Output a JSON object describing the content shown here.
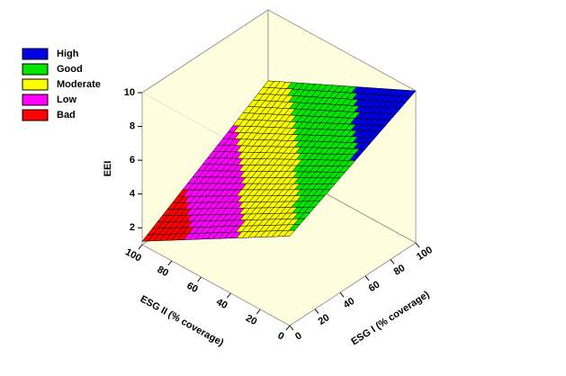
{
  "chart_data": {
    "type": "surface",
    "x_label": "ESG I (% coverage)",
    "y_label": "ESG II (% coverage)",
    "z_label": "EEI",
    "x": [
      0,
      20,
      40,
      60,
      80,
      100
    ],
    "y": [
      0,
      20,
      40,
      60,
      80,
      100
    ],
    "z": [
      [
        6.3,
        7.04,
        7.78,
        8.52,
        9.26,
        10.0
      ],
      [
        5.28,
        6.06,
        6.83,
        7.61,
        8.38,
        9.16
      ],
      [
        4.26,
        5.07,
        5.88,
        6.7,
        7.51,
        8.32
      ],
      [
        3.24,
        4.09,
        4.94,
        5.78,
        6.63,
        7.48
      ],
      [
        2.22,
        3.1,
        3.99,
        4.87,
        5.76,
        6.64
      ],
      [
        1.2,
        2.12,
        3.04,
        3.96,
        4.88,
        5.8
      ]
    ],
    "xlim": [
      0,
      100
    ],
    "ylim": [
      0,
      100
    ],
    "zlim": [
      1,
      10
    ],
    "xticks": [
      0,
      20,
      40,
      60,
      80,
      100
    ],
    "yticks": [
      0,
      20,
      40,
      60,
      80,
      100
    ],
    "zticks": [
      2,
      4,
      6,
      8,
      10
    ],
    "legend": [
      {
        "name": "High",
        "color": "#0000e6"
      },
      {
        "name": "Good",
        "color": "#00e600"
      },
      {
        "name": "Moderate",
        "color": "#ffff00"
      },
      {
        "name": "Low",
        "color": "#ff00ff"
      },
      {
        "name": "Bad",
        "color": "#ff0000"
      }
    ],
    "legend_position": "upper left"
  }
}
